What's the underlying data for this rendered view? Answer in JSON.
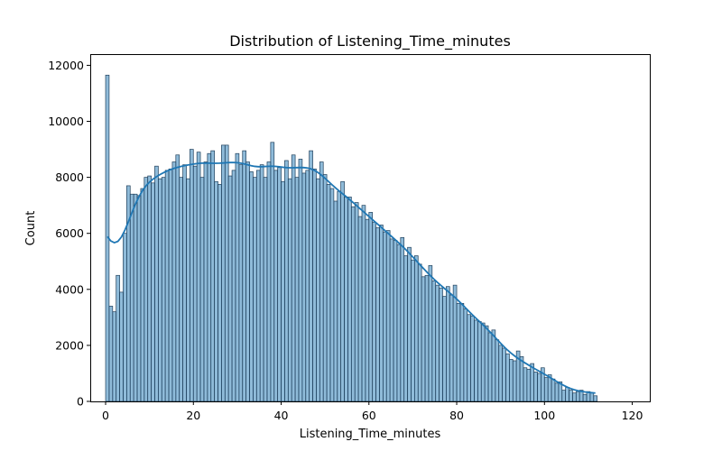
{
  "chart_data": {
    "type": "bar",
    "title": "Distribution of Listening_Time_minutes",
    "xlabel": "Listening_Time_minutes",
    "ylabel": "Count",
    "xlim": [
      -3.5,
      124
    ],
    "ylim": [
      0,
      12400
    ],
    "x_ticks": [
      0,
      20,
      40,
      60,
      80,
      100,
      120
    ],
    "y_ticks": [
      0,
      2000,
      4000,
      6000,
      8000,
      10000,
      12000
    ],
    "bin_width": 0.8,
    "bin_start": 0,
    "bar_color": "#1f77b4",
    "grid": false,
    "legend": false,
    "values": [
      11650,
      3400,
      3200,
      4500,
      3900,
      6000,
      7700,
      7400,
      7400,
      7350,
      7600,
      8000,
      8050,
      7800,
      8400,
      7950,
      8000,
      8250,
      8300,
      8550,
      8800,
      8000,
      8450,
      7950,
      9000,
      8400,
      8900,
      8000,
      8550,
      8850,
      8950,
      7850,
      7750,
      9150,
      9150,
      8050,
      8250,
      8850,
      8450,
      8950,
      8550,
      8200,
      8000,
      8250,
      8450,
      8000,
      8550,
      9250,
      8250,
      8350,
      7850,
      8600,
      7950,
      8800,
      8000,
      8650,
      8150,
      8250,
      8950,
      8300,
      7950,
      8550,
      8100,
      7750,
      7600,
      7150,
      7500,
      7850,
      7300,
      7300,
      6950,
      7100,
      6600,
      7000,
      6500,
      6750,
      6400,
      6200,
      6300,
      6050,
      6100,
      5800,
      5750,
      5600,
      5850,
      5200,
      5500,
      5050,
      5200,
      4900,
      4450,
      4500,
      4850,
      4300,
      4150,
      4050,
      3750,
      4100,
      3800,
      4150,
      3500,
      3500,
      3300,
      3100,
      3050,
      2900,
      2850,
      2800,
      2700,
      2450,
      2550,
      2200,
      2000,
      1900,
      1700,
      1500,
      1450,
      1800,
      1600,
      1200,
      1150,
      1350,
      1050,
      1000,
      1200,
      850,
      950,
      800,
      650,
      700,
      400,
      500,
      400,
      300,
      350,
      400,
      250,
      350,
      300,
      200
    ]
  }
}
